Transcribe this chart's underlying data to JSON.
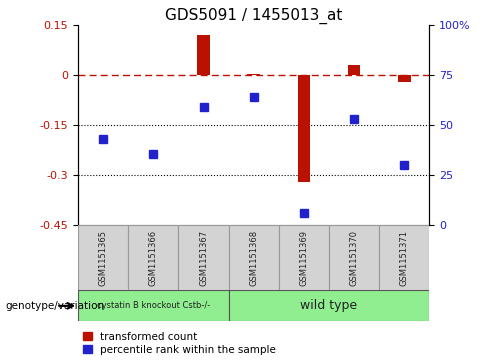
{
  "title": "GDS5091 / 1455013_at",
  "samples": [
    "GSM1151365",
    "GSM1151366",
    "GSM1151367",
    "GSM1151368",
    "GSM1151369",
    "GSM1151370",
    "GSM1151371"
  ],
  "red_values": [
    0.002,
    0.002,
    0.12,
    0.005,
    -0.32,
    0.03,
    -0.02
  ],
  "blue_values": [
    -0.19,
    -0.235,
    -0.095,
    -0.065,
    -0.415,
    -0.13,
    -0.27
  ],
  "ylim_left": [
    -0.45,
    0.15
  ],
  "yticks_left": [
    0.15,
    0.0,
    -0.15,
    -0.3,
    -0.45
  ],
  "ytick_labels_left": [
    "0.15",
    "0",
    "-0.15",
    "-0.3",
    "-0.45"
  ],
  "yticks_right_labels": [
    "100%",
    "75",
    "50",
    "25",
    "0"
  ],
  "red_color": "#bb1100",
  "blue_color": "#2222cc",
  "dashed_line_color": "#bb1100",
  "dotted_line_color": "#000000",
  "bar_width": 0.25,
  "marker_size": 6,
  "legend_red_label": "transformed count",
  "legend_blue_label": "percentile rank within the sample",
  "genotype_label": "genotype/variation",
  "background_color": "#ffffff",
  "group1_label": "cystatin B knockout Cstb-/-",
  "group2_label": "wild type",
  "group1_color": "#90ee90",
  "group2_color": "#90ee90",
  "sample_box_color": "#d3d3d3",
  "sample_box_edge": "#999999"
}
